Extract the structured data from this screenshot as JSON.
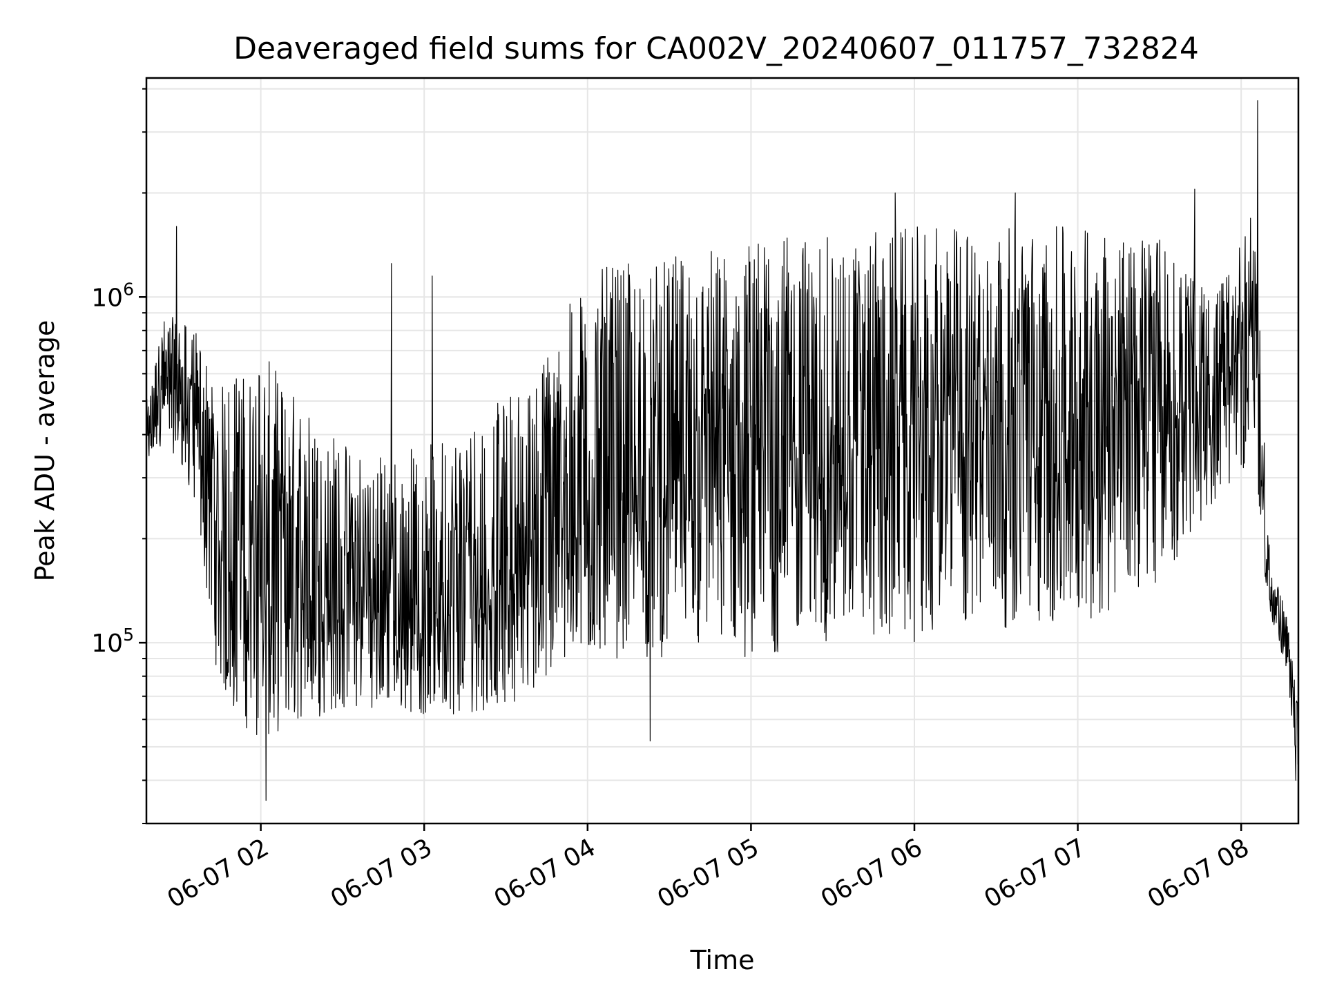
{
  "chart_data": {
    "type": "line",
    "title": "Deaveraged field sums for CA002V_20240607_011757_732824",
    "xlabel": "Time",
    "ylabel": "Peak ADU - average",
    "yscale": "log",
    "ylim": [
      30000,
      4300000
    ],
    "xlim": [
      "2024-06-07 01:18",
      "2024-06-07 08:21"
    ],
    "grid": true,
    "line_color": "#000000",
    "grid_color": "#e6e6e6",
    "x_ticks": [
      {
        "t": "2024-06-07 02:00",
        "label": "06-07 02"
      },
      {
        "t": "2024-06-07 03:00",
        "label": "06-07 03"
      },
      {
        "t": "2024-06-07 04:00",
        "label": "06-07 04"
      },
      {
        "t": "2024-06-07 05:00",
        "label": "06-07 05"
      },
      {
        "t": "2024-06-07 06:00",
        "label": "06-07 06"
      },
      {
        "t": "2024-06-07 07:00",
        "label": "06-07 07"
      },
      {
        "t": "2024-06-07 08:00",
        "label": "06-07 08"
      }
    ],
    "y_ticks": [
      {
        "value": 100000,
        "base": "10",
        "exp": "5"
      },
      {
        "value": 1000000,
        "base": "10",
        "exp": "6"
      }
    ],
    "series": [
      {
        "values_note": "",
        "trend": [
          {
            "t": "2024-06-07 01:18",
            "low": 300000,
            "mid": 400000,
            "high": 500000
          },
          {
            "t": "2024-06-07 01:25",
            "low": 400000,
            "mid": 600000,
            "high": 900000
          },
          {
            "t": "2024-06-07 01:36",
            "low": 250000,
            "mid": 450000,
            "high": 800000
          },
          {
            "t": "2024-06-07 01:45",
            "low": 70000,
            "mid": 200000,
            "high": 550000
          },
          {
            "t": "2024-06-07 02:00",
            "low": 50000,
            "mid": 180000,
            "high": 700000
          },
          {
            "t": "2024-06-07 02:15",
            "low": 60000,
            "mid": 150000,
            "high": 500000
          },
          {
            "t": "2024-06-07 02:40",
            "low": 65000,
            "mid": 130000,
            "high": 350000
          },
          {
            "t": "2024-06-07 03:10",
            "low": 60000,
            "mid": 120000,
            "high": 400000
          },
          {
            "t": "2024-06-07 03:40",
            "low": 70000,
            "mid": 170000,
            "high": 600000
          },
          {
            "t": "2024-06-07 04:00",
            "low": 90000,
            "mid": 250000,
            "high": 1200000
          },
          {
            "t": "2024-06-07 04:30",
            "low": 90000,
            "mid": 300000,
            "high": 1300000
          },
          {
            "t": "2024-06-07 05:00",
            "low": 90000,
            "mid": 330000,
            "high": 1500000
          },
          {
            "t": "2024-06-07 05:30",
            "low": 100000,
            "mid": 350000,
            "high": 1500000
          },
          {
            "t": "2024-06-07 06:00",
            "low": 100000,
            "mid": 400000,
            "high": 1600000
          },
          {
            "t": "2024-06-07 06:30",
            "low": 110000,
            "mid": 500000,
            "high": 1600000
          },
          {
            "t": "2024-06-07 07:00",
            "low": 110000,
            "mid": 550000,
            "high": 1600000
          },
          {
            "t": "2024-06-07 07:30",
            "low": 150000,
            "mid": 600000,
            "high": 1500000
          },
          {
            "t": "2024-06-07 07:50",
            "low": 250000,
            "mid": 550000,
            "high": 1000000
          },
          {
            "t": "2024-06-07 08:05",
            "low": 350000,
            "mid": 700000,
            "high": 1800000
          },
          {
            "t": "2024-06-07 08:10",
            "low": 120000,
            "mid": 150000,
            "high": 200000
          },
          {
            "t": "2024-06-07 08:17",
            "low": 80000,
            "mid": 100000,
            "high": 115000
          },
          {
            "t": "2024-06-07 08:21",
            "low": 40000,
            "mid": 55000,
            "high": 65000
          }
        ],
        "spikes": [
          {
            "t": "2024-06-07 01:29",
            "value": 1600000
          },
          {
            "t": "2024-06-07 02:02",
            "value": 35000
          },
          {
            "t": "2024-06-07 02:48",
            "value": 1250000
          },
          {
            "t": "2024-06-07 03:03",
            "value": 1150000
          },
          {
            "t": "2024-06-07 04:23",
            "value": 52000
          },
          {
            "t": "2024-06-07 05:53",
            "value": 2000000
          },
          {
            "t": "2024-06-07 06:37",
            "value": 2000000
          },
          {
            "t": "2024-06-07 07:43",
            "value": 2050000
          },
          {
            "t": "2024-06-07 08:06",
            "value": 3700000
          },
          {
            "t": "2024-06-07 08:20",
            "value": 40000
          }
        ]
      }
    ]
  }
}
